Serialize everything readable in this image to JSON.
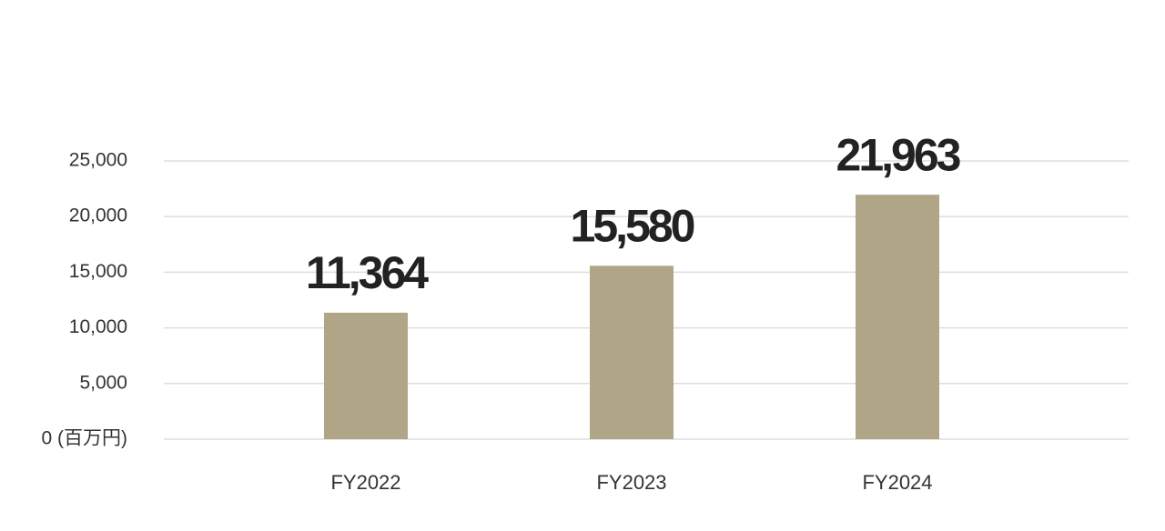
{
  "chart_data": {
    "type": "bar",
    "categories": [
      "FY2022",
      "FY2023",
      "FY2024"
    ],
    "values": [
      11364,
      15580,
      21963
    ],
    "value_labels": [
      "11,364",
      "15,580",
      "21,963"
    ],
    "color": "#b0a586",
    "ylim": [
      0,
      25000
    ],
    "yticks": [
      {
        "value": 0,
        "label": "0 (百万円)"
      },
      {
        "value": 5000,
        "label": "5,000"
      },
      {
        "value": 10000,
        "label": "10,000"
      },
      {
        "value": 15000,
        "label": "15,000"
      },
      {
        "value": 20000,
        "label": "20,000"
      },
      {
        "value": 25000,
        "label": "25,000"
      }
    ],
    "grid": true
  }
}
